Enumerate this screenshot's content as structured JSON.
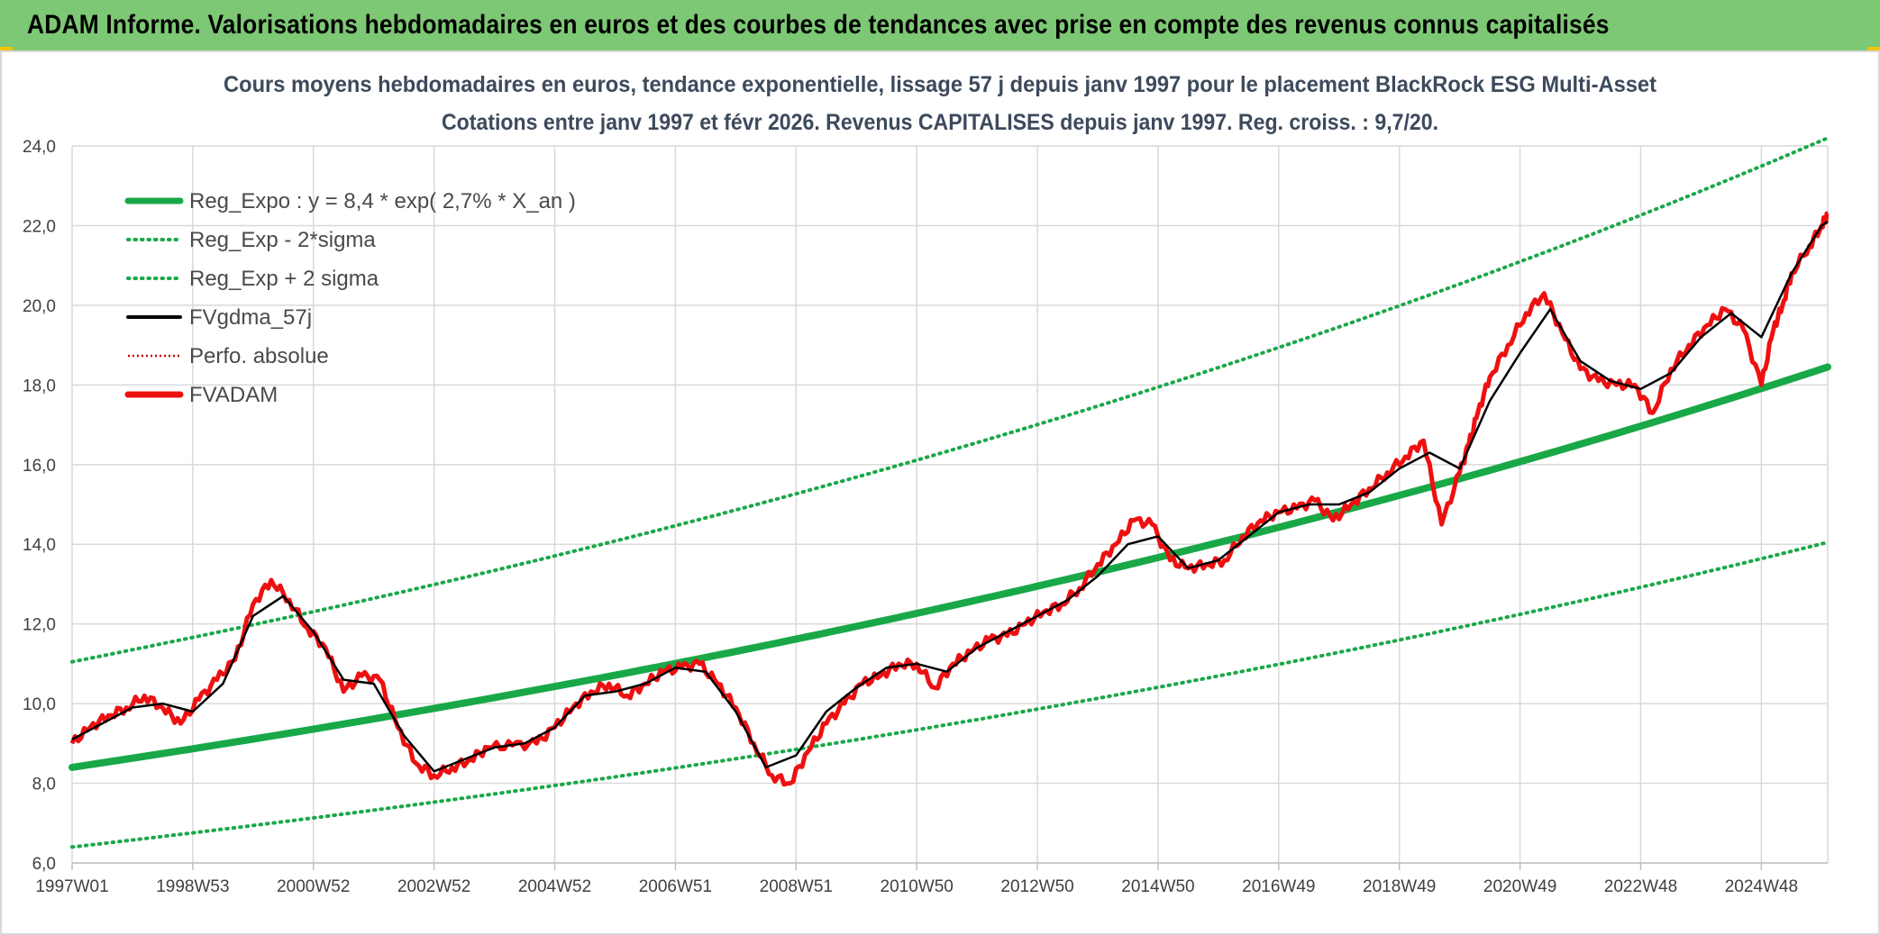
{
  "header": {
    "title": "ADAM Informe. Valorisations hebdomadaires en euros et des courbes de tendances avec prise en compte des revenus connus capitalisés"
  },
  "colors": {
    "banner": "#7dc874",
    "trend": "#19a848",
    "band": "#19a848",
    "smooth": "#000000",
    "fvadam": "#ee1010",
    "perfo": "#cc0000"
  },
  "chart_data": {
    "type": "line",
    "title_line1": "Cours moyens hebdomadaires en euros, tendance exponentielle, lissage 57 j depuis janv 1997 pour le placement BlackRock ESG Multi-Asset",
    "title_line2": "Cotations entre janv 1997 et févr 2026. Revenus CAPITALISES depuis janv 1997. Reg. croiss. : 9,7/20.",
    "xlabel": "",
    "ylabel": "",
    "ylim": [
      6,
      24
    ],
    "ytick_values": [
      6,
      8,
      10,
      12,
      14,
      16,
      18,
      20,
      22,
      24
    ],
    "ytick_labels": [
      "6,0",
      "8,0",
      "10,0",
      "12,0",
      "14,0",
      "16,0",
      "18,0",
      "20,0",
      "22,0",
      "24,0"
    ],
    "xlim": [
      1997.0,
      2026.1
    ],
    "xtick_values": [
      1997.0,
      1999.0,
      2001.0,
      2003.0,
      2005.0,
      2007.0,
      2009.0,
      2011.0,
      2013.0,
      2015.0,
      2017.0,
      2019.0,
      2021.0,
      2023.0,
      2025.0
    ],
    "xtick_labels": [
      "1997W01",
      "1998W53",
      "2000W52",
      "2002W52",
      "2004W52",
      "2006W51",
      "2008W51",
      "2010W50",
      "2012W50",
      "2014W50",
      "2016W49",
      "2018W49",
      "2020W49",
      "2022W48",
      "2024W48"
    ],
    "grid": true,
    "legend_position": "top-left",
    "legend": [
      {
        "label": "Reg_Expo : y = 8,4 * exp( 2,7% *  X_an )",
        "style": "solid-thick",
        "color": "#19a848"
      },
      {
        "label": "Reg_Exp - 2*sigma",
        "style": "dotted",
        "color": "#19a848"
      },
      {
        "label": "Reg_Exp + 2 sigma",
        "style": "dotted",
        "color": "#19a848"
      },
      {
        "label": "FVgdma_57j",
        "style": "solid",
        "color": "#000000"
      },
      {
        "label": "Perfo. absolue",
        "style": "dotted-thin",
        "color": "#cc0000"
      },
      {
        "label": "FVADAM",
        "style": "solid-thick",
        "color": "#ee1010"
      }
    ],
    "trend": {
      "formula_coefficient": 8.4,
      "formula_rate": 0.027,
      "x": [
        1997.0,
        2026.1
      ],
      "y": [
        8.4,
        18.45
      ]
    },
    "band_lower": {
      "x": [
        1997.0,
        2026.1
      ],
      "y": [
        6.4,
        14.05
      ]
    },
    "band_upper": {
      "x": [
        1997.0,
        2026.1
      ],
      "y": [
        11.05,
        24.2
      ]
    },
    "series": [
      {
        "name": "FVADAM",
        "x": [
          1997.0,
          1997.3,
          1997.6,
          1997.9,
          1998.2,
          1998.5,
          1998.8,
          1999.1,
          1999.4,
          1999.7,
          2000.0,
          2000.3,
          2000.6,
          2000.9,
          2001.2,
          2001.5,
          2001.8,
          2002.1,
          2002.4,
          2002.7,
          2003.0,
          2003.3,
          2003.6,
          2003.9,
          2004.3,
          2004.7,
          2005.0,
          2005.3,
          2005.6,
          2005.9,
          2006.2,
          2006.5,
          2006.8,
          2007.1,
          2007.4,
          2007.7,
          2008.0,
          2008.3,
          2008.6,
          2008.9,
          2009.2,
          2009.5,
          2009.8,
          2010.1,
          2010.4,
          2010.7,
          2011.0,
          2011.3,
          2011.6,
          2011.9,
          2012.2,
          2012.5,
          2012.8,
          2013.1,
          2013.4,
          2013.7,
          2014.0,
          2014.3,
          2014.6,
          2014.9,
          2015.2,
          2015.5,
          2015.8,
          2016.1,
          2016.4,
          2016.7,
          2017.0,
          2017.3,
          2017.6,
          2017.9,
          2018.2,
          2018.5,
          2018.8,
          2019.1,
          2019.4,
          2019.7,
          2020.0,
          2020.15,
          2020.3,
          2020.5,
          2020.8,
          2021.1,
          2021.4,
          2021.7,
          2022.0,
          2022.3,
          2022.6,
          2022.9,
          2023.2,
          2023.5,
          2023.8,
          2024.1,
          2024.4,
          2024.7,
          2025.0,
          2025.2,
          2025.35,
          2025.5,
          2025.8,
          2026.0,
          2026.1
        ],
        "y": [
          9.0,
          9.4,
          9.7,
          9.9,
          10.2,
          9.9,
          9.5,
          10.1,
          10.6,
          11.1,
          12.5,
          13.1,
          12.6,
          11.9,
          11.4,
          10.3,
          10.7,
          10.6,
          9.4,
          8.5,
          8.2,
          8.4,
          8.6,
          8.9,
          8.95,
          9.0,
          9.4,
          9.9,
          10.3,
          10.5,
          10.2,
          10.5,
          10.8,
          10.9,
          11.0,
          10.5,
          9.9,
          9.0,
          8.2,
          8.0,
          8.8,
          9.5,
          10.0,
          10.5,
          10.7,
          11.0,
          11.0,
          10.4,
          11.0,
          11.3,
          11.6,
          11.7,
          12.0,
          12.3,
          12.5,
          12.9,
          13.5,
          14.0,
          14.6,
          14.5,
          13.6,
          13.4,
          13.5,
          13.6,
          14.2,
          14.6,
          14.8,
          14.9,
          15.1,
          14.6,
          15.0,
          15.4,
          15.8,
          16.2,
          16.6,
          14.5,
          15.8,
          16.5,
          17.3,
          18.2,
          19.0,
          19.8,
          20.3,
          19.3,
          18.4,
          18.1,
          18.0,
          18.0,
          17.3,
          18.4,
          19.0,
          19.5,
          19.9,
          19.4,
          18.0,
          19.4,
          20.0,
          20.8,
          21.5,
          22.0,
          22.3
        ]
      },
      {
        "name": "FVgdma_57j",
        "x": [
          1997.0,
          1997.5,
          1998.0,
          1998.5,
          1999.0,
          1999.5,
          2000.0,
          2000.5,
          2001.0,
          2001.5,
          2002.0,
          2002.5,
          2003.0,
          2003.5,
          2004.0,
          2004.5,
          2005.0,
          2005.5,
          2006.0,
          2006.5,
          2007.0,
          2007.5,
          2008.0,
          2008.5,
          2009.0,
          2009.5,
          2010.0,
          2010.5,
          2011.0,
          2011.5,
          2012.0,
          2012.5,
          2013.0,
          2013.5,
          2014.0,
          2014.5,
          2015.0,
          2015.5,
          2016.0,
          2016.5,
          2017.0,
          2017.5,
          2018.0,
          2018.5,
          2019.0,
          2019.5,
          2020.0,
          2020.5,
          2021.0,
          2021.5,
          2022.0,
          2022.5,
          2023.0,
          2023.5,
          2024.0,
          2024.5,
          2025.0,
          2025.5,
          2026.0,
          2026.1
        ],
        "y": [
          9.1,
          9.5,
          9.9,
          10.0,
          9.8,
          10.5,
          12.2,
          12.7,
          11.8,
          10.6,
          10.5,
          9.2,
          8.3,
          8.6,
          8.9,
          9.0,
          9.4,
          10.2,
          10.3,
          10.5,
          10.9,
          10.8,
          9.8,
          8.4,
          8.7,
          9.8,
          10.4,
          10.9,
          11.0,
          10.8,
          11.4,
          11.8,
          12.2,
          12.6,
          13.2,
          14.0,
          14.2,
          13.4,
          13.6,
          14.2,
          14.8,
          15.0,
          15.0,
          15.3,
          15.9,
          16.3,
          15.9,
          17.6,
          18.8,
          19.9,
          18.6,
          18.1,
          17.9,
          18.3,
          19.2,
          19.8,
          19.2,
          20.8,
          22.0,
          22.1
        ]
      },
      {
        "name": "Perfo. absolue",
        "x": [
          1997.0,
          1998.5,
          2000.0,
          2000.5,
          2001.5,
          2003.0,
          2005.0,
          2007.0,
          2008.8,
          2010.5,
          2013.0,
          2014.8,
          2016.0,
          2018.0,
          2020.0,
          2021.5,
          2023.0,
          2024.5,
          2026.1
        ],
        "y": [
          9.0,
          9.9,
          12.4,
          12.8,
          10.6,
          8.3,
          9.4,
          10.9,
          8.1,
          10.9,
          12.3,
          14.6,
          13.6,
          15.0,
          15.8,
          20.0,
          17.6,
          19.6,
          22.2
        ]
      }
    ]
  }
}
